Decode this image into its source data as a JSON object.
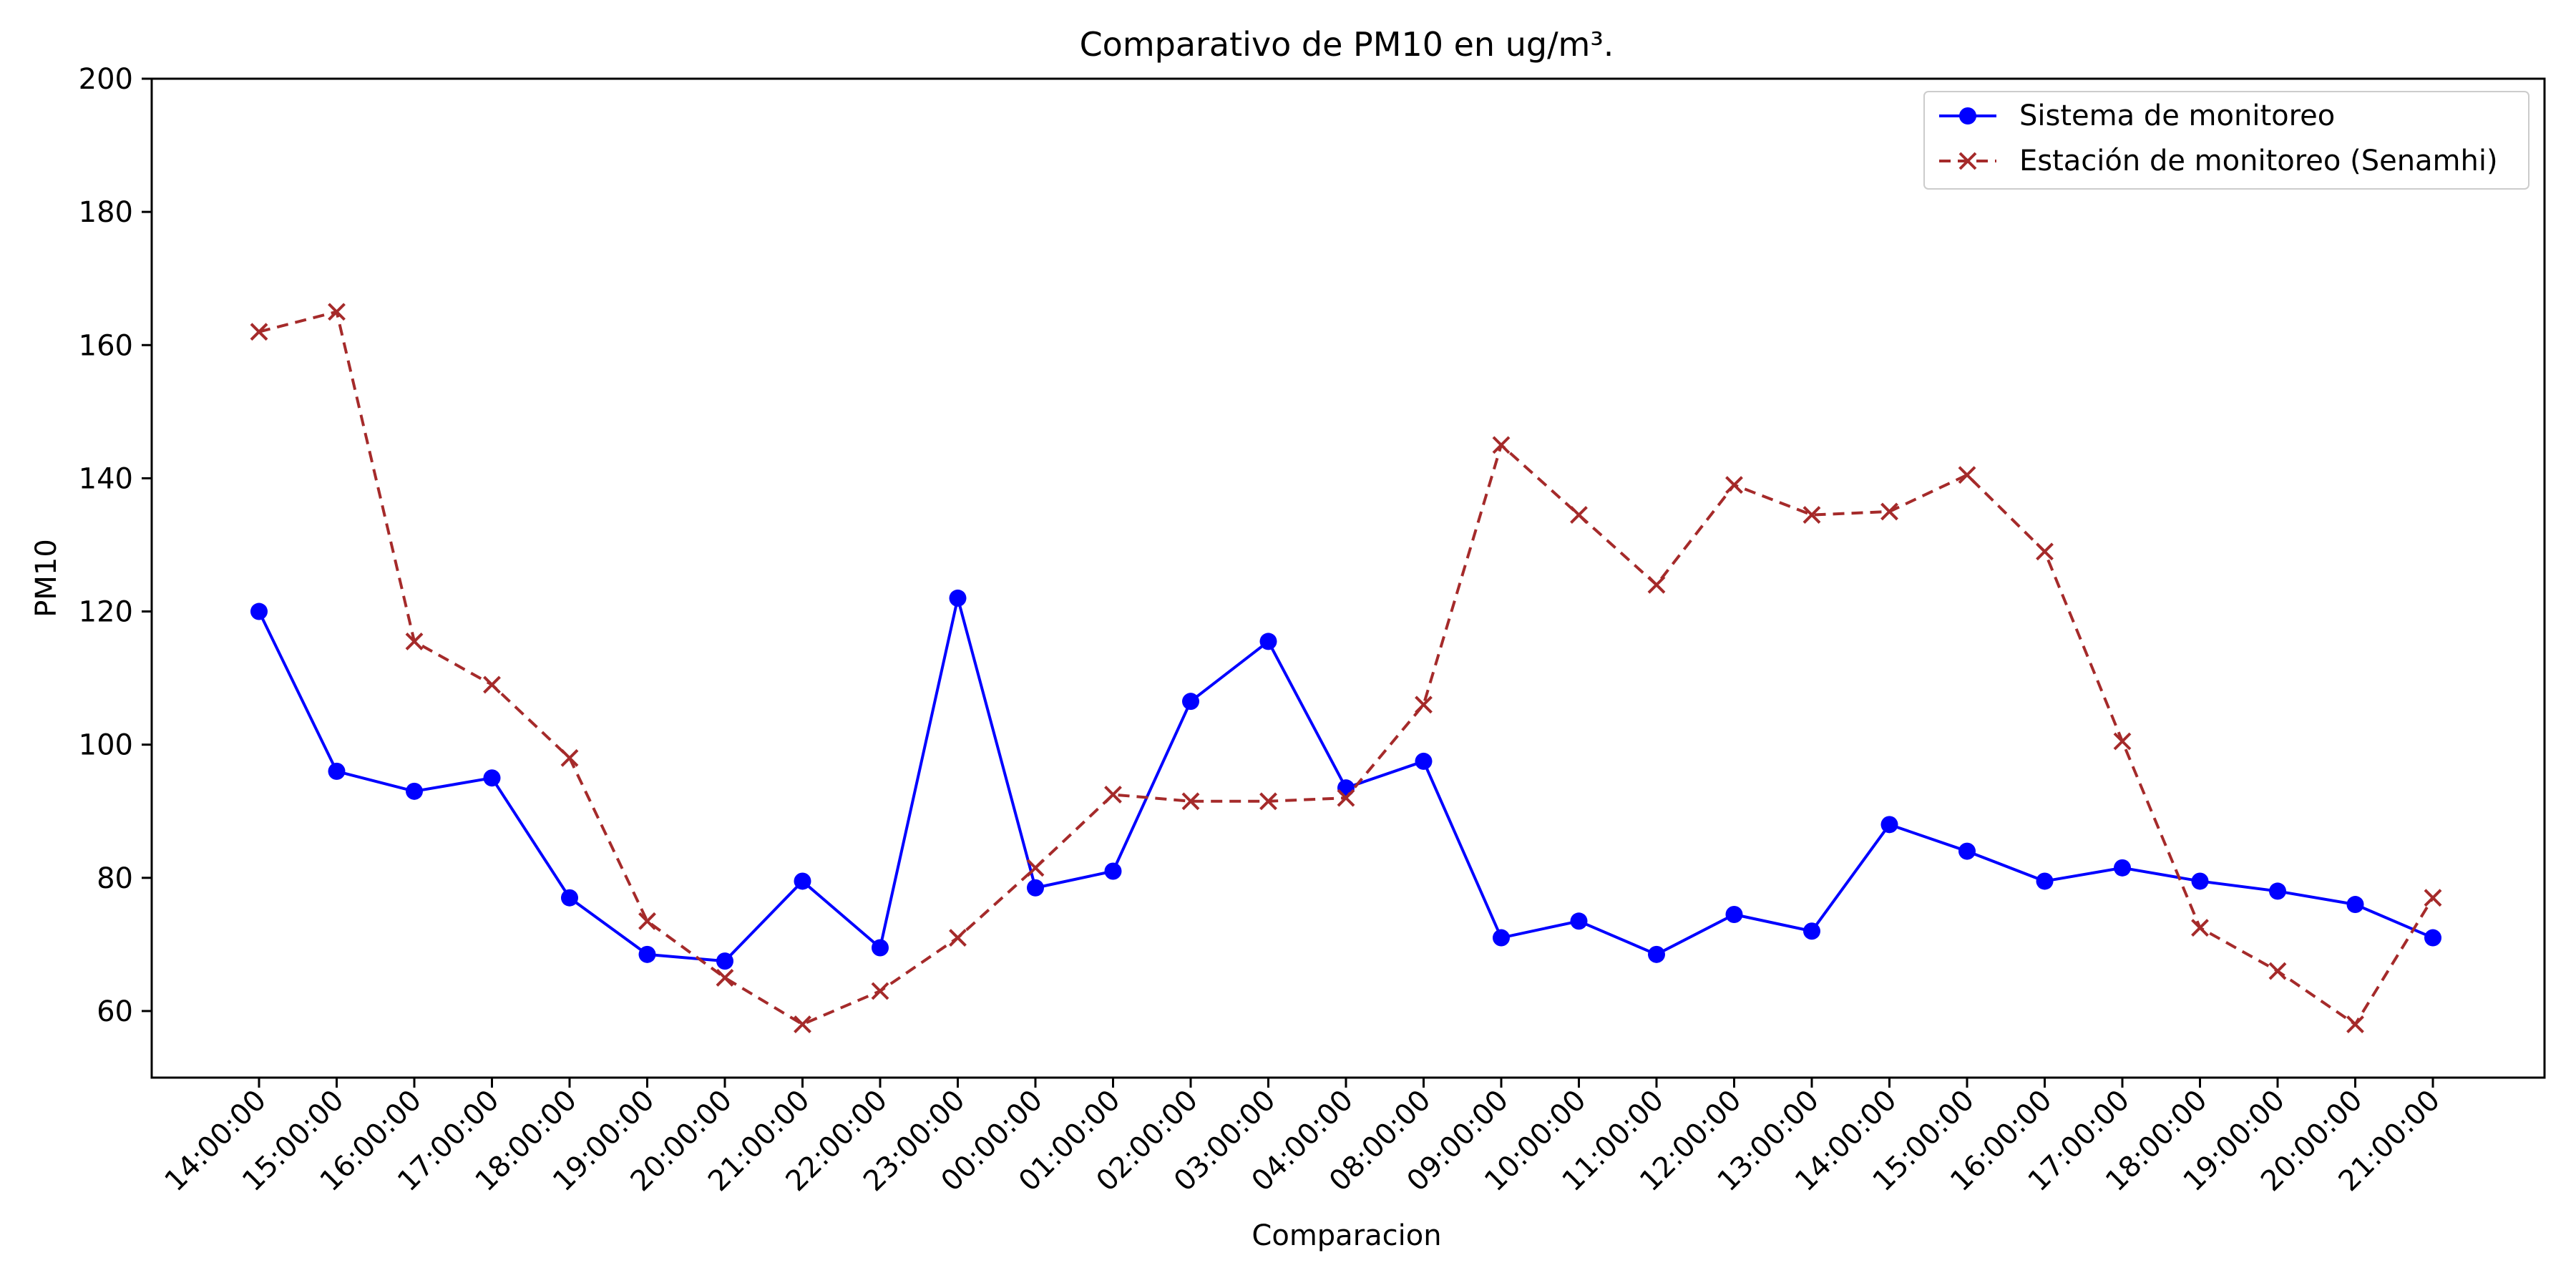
{
  "chart_data": {
    "type": "line",
    "title": "Comparativo de PM10 en ug/m³.",
    "xlabel": "Comparacion",
    "ylabel": "PM10",
    "ylim": [
      50,
      200
    ],
    "yticks": [
      60,
      80,
      100,
      120,
      140,
      160,
      180,
      200
    ],
    "grid": false,
    "legend_position": "top-right",
    "categories": [
      "14:00:00",
      "15:00:00",
      "16:00:00",
      "17:00:00",
      "18:00:00",
      "19:00:00",
      "20:00:00",
      "21:00:00",
      "22:00:00",
      "23:00:00",
      "00:00:00",
      "01:00:00",
      "02:00:00",
      "03:00:00",
      "04:00:00",
      "08:00:00",
      "09:00:00",
      "10:00:00",
      "11:00:00",
      "12:00:00",
      "13:00:00",
      "14:00:00",
      "15:00:00",
      "16:00:00",
      "17:00:00",
      "18:00:00",
      "19:00:00",
      "20:00:00",
      "21:00:00"
    ],
    "series": [
      {
        "name": "Sistema de monitoreo",
        "color": "#0000ff",
        "line_style": "solid",
        "marker": "circle",
        "values": [
          120,
          96,
          93,
          95,
          77,
          68.5,
          67.5,
          79.5,
          69.5,
          122,
          78.5,
          81,
          106.5,
          115.5,
          93.5,
          97.5,
          71,
          73.5,
          68.5,
          74.5,
          72,
          88,
          84,
          79.5,
          81.5,
          79.5,
          78,
          76,
          71
        ]
      },
      {
        "name": "Estación de monitoreo (Senamhi)",
        "color": "#a52a2a",
        "line_style": "dashed",
        "marker": "x",
        "values": [
          162,
          165,
          115.5,
          109,
          98,
          73.5,
          65,
          58,
          63,
          71,
          81.5,
          92.5,
          91.5,
          91.5,
          92,
          106,
          145,
          134.5,
          124,
          139,
          134.5,
          135,
          140.5,
          129,
          100.5,
          72.5,
          66,
          58,
          77
        ]
      }
    ]
  }
}
